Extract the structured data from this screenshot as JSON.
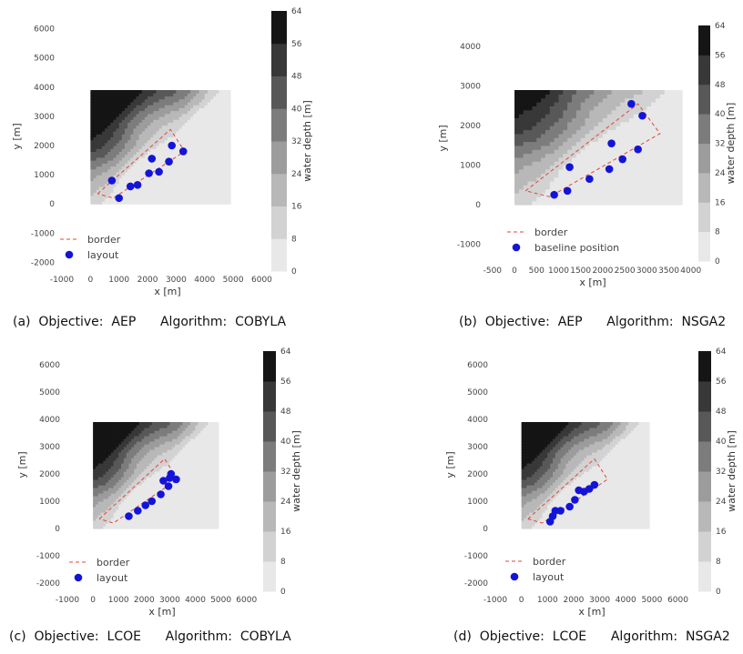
{
  "figure": {
    "colors": {
      "border": "#e0463c",
      "marker": "#1414d8",
      "depth_scale": [
        "#f6f6f6",
        "#e8e8e8",
        "#d2d2d2",
        "#b8b8b8",
        "#9c9c9c",
        "#7c7c7c",
        "#585858",
        "#383838",
        "#151515"
      ]
    }
  },
  "chart_data": [
    {
      "id": "a",
      "type": "scatter",
      "caption": "(a)  Objective:  AEP      Algorithm:  COBYLA",
      "xlabel": "x [m]",
      "ylabel": "y [m]",
      "colorbar_label": "water depth [m]",
      "xlim": [
        -1000,
        6400
      ],
      "ylim": [
        -2300,
        6300
      ],
      "xticks": [
        "-1000",
        "0",
        "1000",
        "2000",
        "3000",
        "4000",
        "5000",
        "6000"
      ],
      "yticks": [
        "-2000",
        "-1000",
        "0",
        "1000",
        "2000",
        "3000",
        "4000",
        "5000",
        "6000"
      ],
      "colorbar_ticks": [
        "0",
        "8",
        "16",
        "24",
        "32",
        "40",
        "48",
        "56",
        "64"
      ],
      "bathymetry_extent": {
        "x": [
          0,
          4900
        ],
        "y": [
          0,
          3850
        ]
      },
      "border": [
        [
          250,
          350
        ],
        [
          2800,
          2550
        ],
        [
          3300,
          1800
        ],
        [
          800,
          200
        ],
        [
          250,
          350
        ]
      ],
      "series": [
        {
          "name": "border",
          "kind": "line"
        },
        {
          "name": "layout",
          "kind": "markers",
          "x": [
            750,
            1000,
            1400,
            1650,
            2050,
            2150,
            2400,
            2750,
            2850,
            3250
          ],
          "y": [
            800,
            200,
            600,
            650,
            1050,
            1550,
            1100,
            1450,
            2000,
            1800
          ]
        }
      ]
    },
    {
      "id": "b",
      "type": "scatter",
      "caption": "(b)  Objective:  AEP      Algorithm:  NSGA2",
      "xlabel": "x [m]",
      "ylabel": "y [m]",
      "colorbar_label": "water depth [m]",
      "xlim": [
        -600,
        4150
      ],
      "ylim": [
        -1450,
        4350
      ],
      "xticks": [
        "-500",
        "0",
        "500",
        "1000",
        "1500",
        "2000",
        "2500",
        "3000",
        "3500",
        "4000"
      ],
      "yticks": [
        "-1000",
        "0",
        "1000",
        "2000",
        "3000",
        "4000"
      ],
      "colorbar_ticks": [
        "0",
        "8",
        "16",
        "24",
        "32",
        "40",
        "48",
        "56",
        "64"
      ],
      "bathymetry_extent": {
        "x": [
          0,
          3750
        ],
        "y": [
          0,
          2900
        ]
      },
      "border": [
        [
          250,
          350
        ],
        [
          2800,
          2550
        ],
        [
          3300,
          1800
        ],
        [
          800,
          200
        ],
        [
          250,
          350
        ]
      ],
      "series": [
        {
          "name": "border",
          "kind": "line"
        },
        {
          "name": "baseline position",
          "kind": "markers",
          "x": [
            900,
            1200,
            1250,
            1700,
            2150,
            2200,
            2450,
            2650,
            2800,
            2900
          ],
          "y": [
            250,
            350,
            950,
            650,
            900,
            1550,
            1150,
            2550,
            1400,
            2250
          ]
        }
      ]
    },
    {
      "id": "c",
      "type": "scatter",
      "caption": "(c)  Objective:  LCOE      Algorithm:  COBYLA",
      "xlabel": "x [m]",
      "ylabel": "y [m]",
      "colorbar_label": "water depth [m]",
      "xlim": [
        -1000,
        6400
      ],
      "ylim": [
        -2300,
        6300
      ],
      "xticks": [
        "-1000",
        "0",
        "1000",
        "2000",
        "3000",
        "4000",
        "5000",
        "6000"
      ],
      "yticks": [
        "-2000",
        "-1000",
        "0",
        "1000",
        "2000",
        "3000",
        "4000",
        "5000",
        "6000"
      ],
      "colorbar_ticks": [
        "0",
        "8",
        "16",
        "24",
        "32",
        "40",
        "48",
        "56",
        "64"
      ],
      "bathymetry_extent": {
        "x": [
          0,
          4900
        ],
        "y": [
          0,
          3850
        ]
      },
      "border": [
        [
          250,
          350
        ],
        [
          2800,
          2550
        ],
        [
          3300,
          1800
        ],
        [
          800,
          200
        ],
        [
          250,
          350
        ]
      ],
      "series": [
        {
          "name": "border",
          "kind": "line"
        },
        {
          "name": "layout",
          "kind": "markers",
          "x": [
            1400,
            1750,
            2050,
            2300,
            2650,
            2750,
            2950,
            3000,
            3050,
            3250
          ],
          "y": [
            450,
            650,
            850,
            1000,
            1250,
            1750,
            1550,
            1850,
            2000,
            1800
          ]
        }
      ]
    },
    {
      "id": "d",
      "type": "scatter",
      "caption": "(d)  Objective:  LCOE      Algorithm:  NSGA2",
      "xlabel": "x [m]",
      "ylabel": "y [m]",
      "colorbar_label": "water depth [m]",
      "xlim": [
        -1000,
        6400
      ],
      "ylim": [
        -2300,
        6300
      ],
      "xticks": [
        "-1000",
        "0",
        "1000",
        "2000",
        "3000",
        "4000",
        "5000",
        "6000"
      ],
      "yticks": [
        "-2000",
        "-1000",
        "0",
        "1000",
        "2000",
        "3000",
        "4000",
        "5000",
        "6000"
      ],
      "colorbar_ticks": [
        "0",
        "8",
        "16",
        "24",
        "32",
        "40",
        "48",
        "56",
        "64"
      ],
      "bathymetry_extent": {
        "x": [
          0,
          4900
        ],
        "y": [
          0,
          3850
        ]
      },
      "border": [
        [
          250,
          350
        ],
        [
          2800,
          2550
        ],
        [
          3300,
          1800
        ],
        [
          800,
          200
        ],
        [
          250,
          350
        ]
      ],
      "series": [
        {
          "name": "border",
          "kind": "line"
        },
        {
          "name": "layout",
          "kind": "markers",
          "x": [
            1100,
            1200,
            1300,
            1500,
            1850,
            2050,
            2200,
            2400,
            2600,
            2800
          ],
          "y": [
            250,
            450,
            650,
            650,
            800,
            1050,
            1400,
            1350,
            1450,
            1600
          ]
        }
      ]
    }
  ]
}
